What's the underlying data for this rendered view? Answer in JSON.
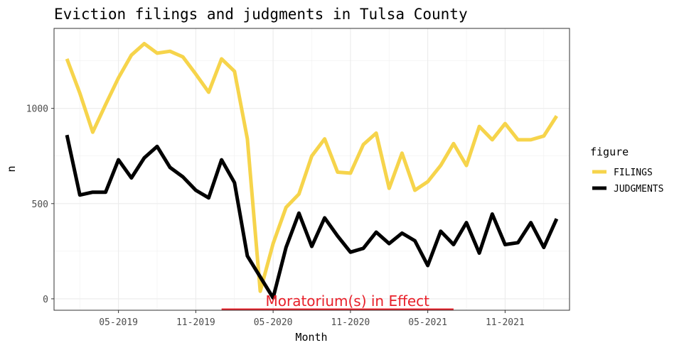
{
  "chart_data": {
    "type": "line",
    "title": "Eviction filings and judgments in Tulsa County",
    "xlabel": "Month",
    "ylabel": "n",
    "x_tick_labels": [
      "05-2019",
      "11-2019",
      "05-2020",
      "11-2020",
      "05-2021",
      "11-2021"
    ],
    "y_ticks": [
      0,
      500,
      1000
    ],
    "ylim": [
      -60,
      1420
    ],
    "xlim": [
      "2018-12-01",
      "2022-04-01"
    ],
    "grid": true,
    "legend": {
      "title": "figure",
      "position": "right"
    },
    "annotation": {
      "text": "Moratorium(s) in Effect",
      "start": "2020-01",
      "end": "2021-07"
    },
    "x": [
      "2019-01",
      "2019-02",
      "2019-03",
      "2019-04",
      "2019-05",
      "2019-06",
      "2019-07",
      "2019-08",
      "2019-09",
      "2019-10",
      "2019-11",
      "2019-12",
      "2020-01",
      "2020-02",
      "2020-03",
      "2020-04",
      "2020-05",
      "2020-06",
      "2020-07",
      "2020-08",
      "2020-09",
      "2020-10",
      "2020-11",
      "2020-12",
      "2021-01",
      "2021-02",
      "2021-03",
      "2021-04",
      "2021-05",
      "2021-06",
      "2021-07",
      "2021-08",
      "2021-09",
      "2021-10",
      "2021-11",
      "2021-12",
      "2022-01",
      "2022-02",
      "2022-03"
    ],
    "series": [
      {
        "name": "FILINGS",
        "color": "#F6D44B",
        "values": [
          1260,
          1080,
          875,
          1020,
          1160,
          1280,
          1340,
          1290,
          1300,
          1270,
          1180,
          1085,
          1260,
          1195,
          840,
          40,
          290,
          480,
          550,
          750,
          840,
          665,
          660,
          810,
          870,
          580,
          765,
          570,
          615,
          700,
          815,
          700,
          905,
          835,
          920,
          835,
          835,
          855,
          960
        ]
      },
      {
        "name": "JUDGMENTS",
        "color": "#000000",
        "values": [
          860,
          545,
          560,
          560,
          730,
          635,
          740,
          800,
          690,
          640,
          570,
          530,
          730,
          610,
          225,
          115,
          5,
          270,
          450,
          275,
          425,
          330,
          245,
          265,
          350,
          290,
          345,
          305,
          175,
          355,
          285,
          400,
          240,
          445,
          285,
          295,
          400,
          270,
          420
        ]
      }
    ]
  }
}
